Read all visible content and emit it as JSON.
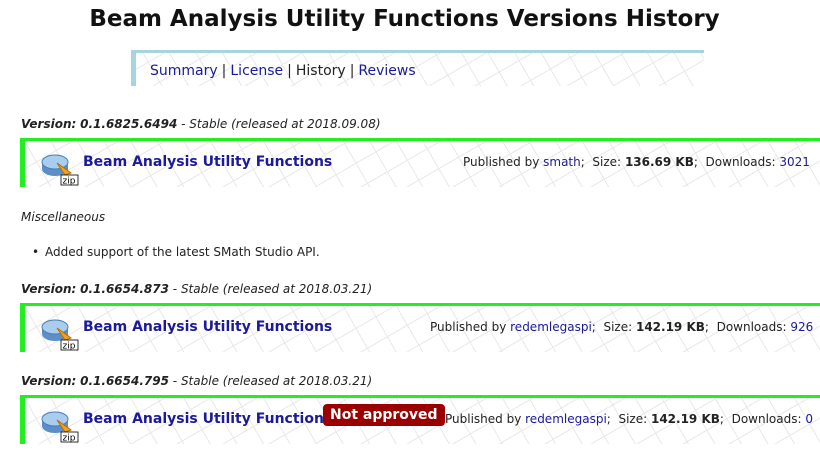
{
  "title": "Beam Analysis Utility Functions Versions History",
  "nav": [
    "Summary",
    "License",
    "History",
    "Reviews"
  ],
  "nav_current": "History",
  "labels": {
    "version": "Version:",
    "published_by": "Published by",
    "size": "Size:",
    "downloads": "Downloads:"
  },
  "versions": [
    {
      "version": "0.1.6825.6494",
      "status": "- Stable (released at 2018.09.08)",
      "name": "Beam Analysis Utility Functions",
      "author": "smath",
      "size": "136.69 KB",
      "downloads": "3021",
      "section": "Miscellaneous",
      "changes": [
        "Added support of the latest SMath Studio API."
      ]
    },
    {
      "version": "0.1.6654.873",
      "status": "- Stable (released at 2018.03.21)",
      "name": "Beam Analysis Utility Functions",
      "author": "redemlegaspi",
      "size": "142.19 KB",
      "downloads": "926"
    },
    {
      "version": "0.1.6654.795",
      "status": "- Stable (released at 2018.03.21)",
      "name": "Beam Analysis Utility Functions",
      "author": "redemlegaspi",
      "size": "142.19 KB",
      "downloads": "0",
      "badge": "Not approved"
    }
  ],
  "icon_label": "zip",
  "colors": {
    "accent_green": "#22ee22",
    "nav_border": "#a8d4e0",
    "link": "#1a1a9a",
    "badge": "#9a0000"
  }
}
